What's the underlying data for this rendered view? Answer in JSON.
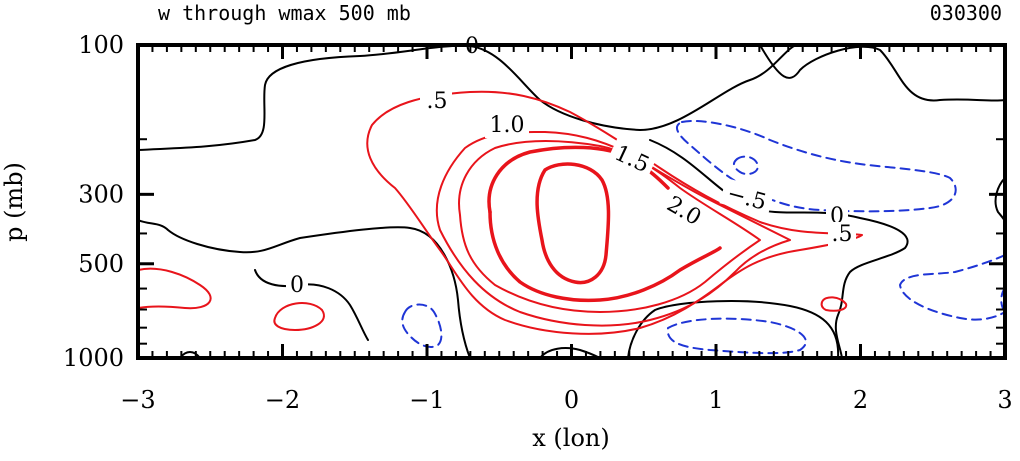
{
  "chart_data": {
    "type": "contour",
    "title": "w through wmax 500 mb",
    "date_label": "030300",
    "xlabel": "x (lon)",
    "ylabel": "p (mb)",
    "xlim": [
      -3,
      3
    ],
    "ylim_pressure": [
      1000,
      100
    ],
    "x_ticks": [
      {
        "value": -3,
        "label": "−3"
      },
      {
        "value": -2,
        "label": "−2"
      },
      {
        "value": -1,
        "label": "−1"
      },
      {
        "value": 0,
        "label": "0"
      },
      {
        "value": 1,
        "label": "1"
      },
      {
        "value": 2,
        "label": "2"
      },
      {
        "value": 3,
        "label": "3"
      }
    ],
    "y_ticks": [
      {
        "value": 100,
        "label": "100"
      },
      {
        "value": 300,
        "label": "300"
      },
      {
        "value": 500,
        "label": "500"
      },
      {
        "value": 1000,
        "label": "1000"
      }
    ],
    "contour_levels": [
      -0.5,
      0,
      0.5,
      1.0,
      1.5,
      2.0,
      2.5
    ],
    "contour_labels": [
      {
        "text": "0",
        "x": 0.0,
        "y": 0.0
      },
      {
        "text": ".5",
        "x": -1.0,
        "y": 155
      },
      {
        "text": "1.0",
        "x": -0.6,
        "y": 190
      },
      {
        "text": "1.5",
        "x": 0.4,
        "y": 250
      },
      {
        "text": "2.0",
        "x": 0.75,
        "y": 345
      },
      {
        "text": "−.5",
        "x": 1.25,
        "y": 310
      },
      {
        "text": "0",
        "x": 1.75,
        "y": 370
      },
      {
        "text": ".5",
        "x": 1.75,
        "y": 410
      },
      {
        "text": "0",
        "x": -1.9,
        "y": 580
      }
    ],
    "colors": {
      "positive": "#e8141b",
      "zero": "#000000",
      "negative": "#1f35d6"
    }
  }
}
